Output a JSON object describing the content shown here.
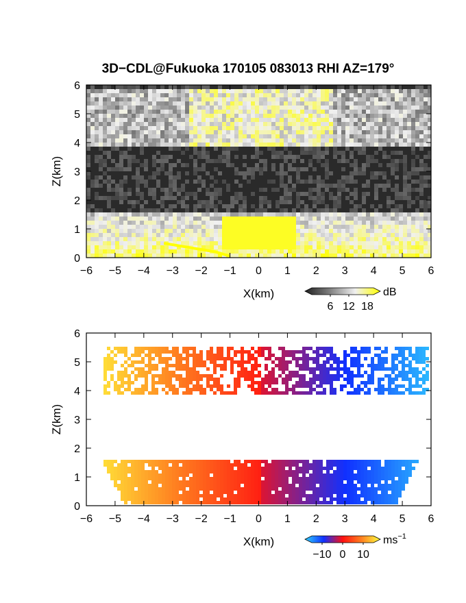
{
  "title": "3D−CDL@Fukuoka 170105 083013 RHI AZ=179°",
  "chart_data": [
    {
      "type": "heatmap",
      "panel": "reflectivity",
      "xlabel": "X(km)",
      "ylabel": "Z(km)",
      "xlim": [
        -6,
        6
      ],
      "ylim": [
        0,
        6
      ],
      "xticks": [
        "−6",
        "−5",
        "−4",
        "−3",
        "−2",
        "−1",
        "0",
        "1",
        "2",
        "3",
        "4",
        "5",
        "6"
      ],
      "yticks": [
        "0",
        "1",
        "2",
        "3",
        "4",
        "5",
        "6"
      ],
      "colorbar": {
        "unit": "dB",
        "ticks": [
          "6",
          "12",
          "18"
        ],
        "tick_values": [
          6,
          12,
          18
        ],
        "range": [
          0,
          20
        ],
        "colors": [
          "#202020",
          "#808080",
          "#f0f0f0",
          "#ffff00"
        ]
      }
    },
    {
      "type": "heatmap",
      "panel": "doppler-velocity",
      "xlabel": "X(km)",
      "ylabel": "Z(km)",
      "xlim": [
        -6,
        6
      ],
      "ylim": [
        0,
        6
      ],
      "xticks": [
        "−6",
        "−5",
        "−4",
        "−3",
        "−2",
        "−1",
        "0",
        "1",
        "2",
        "3",
        "4",
        "5",
        "6"
      ],
      "yticks": [
        "0",
        "1",
        "2",
        "3",
        "4",
        "5",
        "6"
      ],
      "colorbar": {
        "unit": "ms",
        "unit_exponent": "−1",
        "ticks": [
          "−10",
          "0",
          "10"
        ],
        "tick_values": [
          -10,
          0,
          10
        ],
        "range": [
          -15,
          15
        ],
        "colors": [
          "#30d0ff",
          "#1030ff",
          "#ff1010",
          "#ff8020",
          "#ffff40"
        ]
      }
    }
  ]
}
